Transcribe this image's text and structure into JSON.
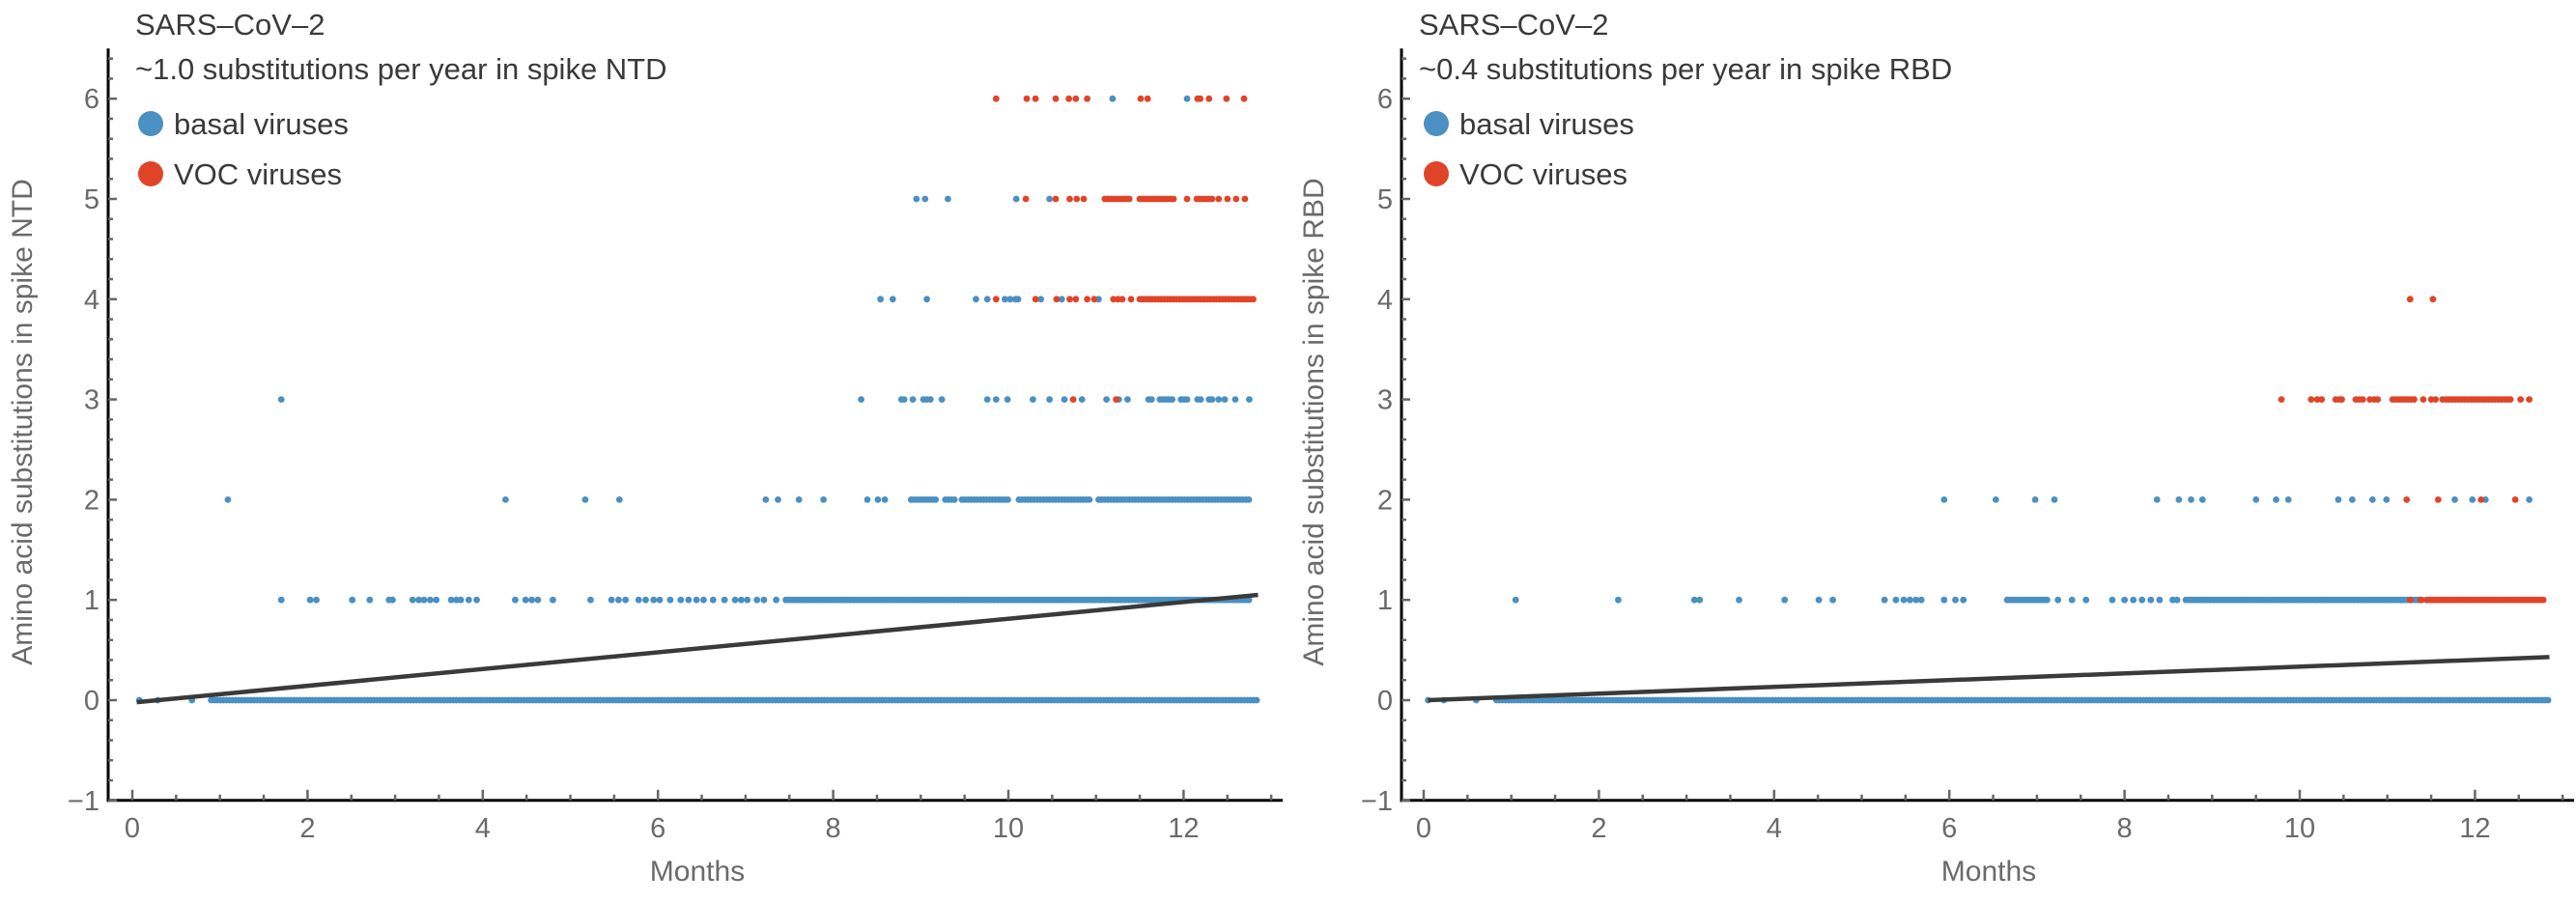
{
  "chart_data": [
    {
      "type": "scatter",
      "title": "SARS–CoV–2",
      "subtitle": "~1.0 substitutions per year in spike NTD",
      "xlabel": "Months",
      "ylabel": "Amino acid substitutions in spike NTD",
      "xlim": [
        -0.25,
        13.15
      ],
      "ylim": [
        -1,
        6.5
      ],
      "xticks": [
        "0",
        "2",
        "4",
        "6",
        "8",
        "10",
        "12"
      ],
      "yticks": [
        "-1",
        "0",
        "1",
        "2",
        "3",
        "4",
        "5",
        "6"
      ],
      "legend": [
        {
          "label": "basal viruses",
          "color": "#4a90c2"
        },
        {
          "label": "VOC viruses",
          "color": "#e04428"
        }
      ],
      "legend_placement": "top-left",
      "fit_line": {
        "x": [
          0.05,
          12.85
        ],
        "y": [
          -0.02,
          1.05
        ],
        "color": "#3a3a3a"
      },
      "series": [
        {
          "name": "basal viruses",
          "color": "#4a90c2",
          "levels": [
            {
              "y": 0,
              "x": [
                0.08,
                0.29,
                0.68
              ],
              "runs": [
                [
                  0.9,
                  12.86
                ]
              ]
            },
            {
              "y": 1,
              "x": [
                1.7,
                2.03,
                2.1,
                2.51,
                2.71,
                2.93,
                2.97,
                3.2,
                3.27,
                3.33,
                3.4,
                3.47,
                3.64,
                3.7,
                3.75,
                3.84,
                3.93,
                4.37,
                4.49,
                4.56,
                4.63,
                4.8,
                5.23,
                5.47,
                5.55,
                5.63,
                5.78,
                5.86,
                5.95,
                6.02,
                6.14,
                6.26,
                6.35,
                6.44,
                6.52,
                6.63,
                6.76,
                6.88,
                6.95,
                7.02,
                7.13,
                7.21,
                7.35
              ],
              "runs": [
                [
                  7.46,
                  12.75
                ]
              ]
            },
            {
              "y": 2,
              "x": [
                1.09,
                4.26,
                5.17,
                5.56,
                7.23,
                7.37,
                7.61,
                7.89,
                8.39,
                8.51,
                8.59
              ],
              "runs": [
                [
                  8.89,
                  9.17
                ],
                [
                  9.28,
                  9.4
                ],
                [
                  9.47,
                  10.01
                ],
                [
                  10.12,
                  10.95
                ],
                [
                  11.03,
                  12.75
                ]
              ]
            },
            {
              "y": 3,
              "x": [
                1.7,
                8.32,
                8.78,
                8.81,
                8.91,
                9.03,
                9.07,
                9.11,
                9.24,
                9.76,
                9.86,
                9.99,
                10.28,
                10.47,
                10.64,
                10.84,
                11.12,
                11.26,
                11.36,
                12.4,
                12.47,
                12.59,
                12.75
              ],
              "runs": [
                [
                  11.6,
                  11.64
                ],
                [
                  11.73,
                  11.89
                ],
                [
                  11.97,
                  12.07
                ],
                [
                  12.16,
                  12.2
                ],
                [
                  12.29,
                  12.34
                ]
              ]
            },
            {
              "y": 4,
              "x": [
                8.54,
                8.68,
                9.07,
                9.63,
                9.76,
                9.96,
                10.02,
                10.08,
                10.11,
                10.37,
                10.61,
                11.03
              ],
              "runs": []
            },
            {
              "y": 5,
              "x": [
                8.95,
                9.05,
                9.31,
                10.09,
                10.47
              ],
              "runs": []
            },
            {
              "y": 6,
              "x": [
                11.19,
                12.04
              ],
              "runs": []
            }
          ]
        },
        {
          "name": "VOC viruses",
          "color": "#e04428",
          "levels": [
            {
              "y": 3,
              "x": [
                10.74,
                11.23
              ],
              "runs": []
            },
            {
              "y": 4,
              "x": [
                9.86,
                10.31,
                10.55,
                10.7,
                10.77,
                10.9,
                10.98,
                11.2,
                11.25,
                11.3,
                11.4
              ],
              "runs": [
                [
                  11.5,
                  12.8
                ]
              ]
            },
            {
              "y": 5,
              "x": [
                10.2,
                10.54,
                10.7,
                10.78,
                10.86,
                12.04,
                12.4,
                12.5,
                12.6,
                12.7
              ],
              "runs": [
                [
                  11.1,
                  11.4
                ],
                [
                  11.5,
                  11.9
                ],
                [
                  12.15,
                  12.35
                ]
              ]
            },
            {
              "y": 6,
              "x": [
                9.86,
                10.21,
                10.31,
                10.54,
                10.69,
                10.77,
                10.9,
                11.51,
                11.59,
                12.16,
                12.19,
                12.29,
                12.49,
                12.69
              ],
              "runs": []
            }
          ]
        }
      ]
    },
    {
      "type": "scatter",
      "title": "SARS–CoV–2",
      "subtitle": "~0.4 substitutions per year in spike RBD",
      "xlabel": "Months",
      "ylabel": "Amino acid substitutions in spike RBD",
      "xlim": [
        -0.25,
        13.15
      ],
      "ylim": [
        -1,
        6.5
      ],
      "xticks": [
        "0",
        "2",
        "4",
        "6",
        "8",
        "10",
        "12"
      ],
      "yticks": [
        "-1",
        "0",
        "1",
        "2",
        "3",
        "4",
        "5",
        "6"
      ],
      "legend": [
        {
          "label": "basal viruses",
          "color": "#4a90c2"
        },
        {
          "label": "VOC viruses",
          "color": "#e04428"
        }
      ],
      "legend_placement": "top-left",
      "fit_line": {
        "x": [
          0.05,
          12.85
        ],
        "y": [
          0.0,
          0.43
        ],
        "color": "#3a3a3a"
      },
      "series": [
        {
          "name": "basal viruses",
          "color": "#4a90c2",
          "levels": [
            {
              "y": 0,
              "x": [
                0.05,
                0.23,
                0.6
              ],
              "runs": [
                [
                  0.83,
                  12.86
                ]
              ]
            },
            {
              "y": 1,
              "x": [
                1.05,
                2.22,
                3.09,
                3.15,
                3.6,
                4.12,
                4.51,
                4.67,
                5.26,
                5.39,
                5.48,
                5.55,
                5.62,
                5.68,
                5.94,
                6.07,
                6.16,
                7.24,
                7.4,
                7.56,
                7.86,
                8.0,
                8.1,
                8.2,
                8.3,
                8.4,
                8.55,
                8.6
              ],
              "runs": [
                [
                  6.66,
                  7.12
                ],
                [
                  8.7,
                  11.4
                ]
              ]
            },
            {
              "y": 2,
              "x": [
                5.94,
                6.53,
                6.98,
                7.2,
                8.37,
                8.62,
                8.76,
                8.89,
                9.5,
                9.73,
                9.87,
                10.44,
                10.6,
                10.83,
                10.99,
                11.77,
                11.97,
                12.12,
                12.62
              ],
              "runs": []
            }
          ]
        },
        {
          "name": "VOC viruses",
          "color": "#e04428",
          "levels": [
            {
              "y": 1,
              "x": [
                11.26,
                11.38
              ],
              "runs": [
                [
                  11.45,
                  12.8
                ]
              ]
            },
            {
              "y": 2,
              "x": [
                11.22,
                11.58,
                12.07,
                12.46
              ],
              "runs": []
            },
            {
              "y": 3,
              "x": [
                9.79,
                10.13,
                10.2,
                10.25,
                10.41,
                10.45,
                10.48,
                10.64,
                10.68,
                10.72,
                10.8,
                10.85,
                10.89,
                11.41,
                11.5,
                11.55,
                11.63,
                12.52,
                12.62
              ],
              "runs": [
                [
                  11.06,
                  11.33
                ],
                [
                  11.67,
                  12.41
                ]
              ]
            },
            {
              "y": 4,
              "x": [
                11.26,
                11.52
              ],
              "runs": []
            }
          ]
        }
      ]
    }
  ]
}
